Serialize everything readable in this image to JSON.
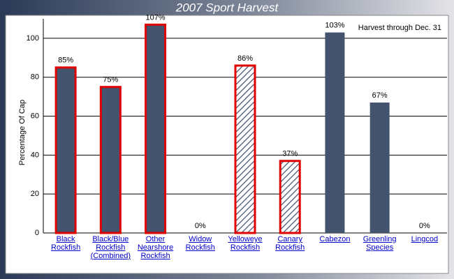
{
  "chart_data": {
    "type": "bar",
    "title": "2007 Sport Harvest",
    "annotation": "Harvest through Dec. 31",
    "ylabel": "Percentage Of Cap",
    "categories": [
      "Black Rockfish",
      "Black/Blue Rockfish (Combined)",
      "Other Nearshore Rockfish",
      "Widow Rockfish",
      "Yelloweye Rockfish",
      "Canary Rockfish",
      "Cabezon",
      "Greenling Species",
      "Lingcod"
    ],
    "values": [
      85,
      75,
      107,
      0,
      86,
      37,
      103,
      67,
      0
    ],
    "value_labels": [
      "85%",
      "75%",
      "107%",
      "0%",
      "86%",
      "37%",
      "103%",
      "67%",
      "0%"
    ],
    "highlight": [
      true,
      true,
      true,
      false,
      true,
      true,
      false,
      false,
      false
    ],
    "hatched": [
      false,
      false,
      false,
      false,
      true,
      true,
      false,
      false,
      false
    ],
    "color": "#44536e",
    "highlight_color": "#e00000",
    "ylim": [
      0,
      110
    ],
    "yticks": [
      0,
      20,
      40,
      60,
      80,
      100
    ],
    "grid": true
  }
}
